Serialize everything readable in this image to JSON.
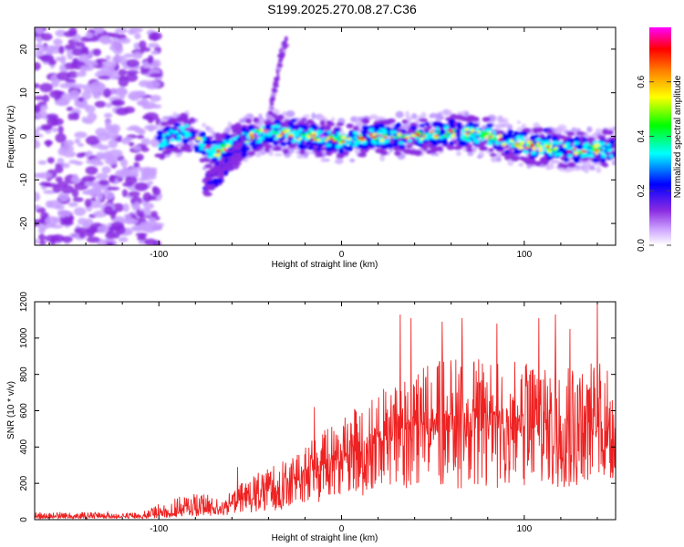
{
  "page_title": "S199.2025.270.08.27.C36",
  "chart_data": [
    {
      "type": "heatmap",
      "title": "S199.2025.270.08.27.C36",
      "xlabel": "Height of straight line (km)",
      "ylabel": "Frequency (Hz)",
      "xlim": [
        -168,
        150
      ],
      "ylim": [
        -25,
        25
      ],
      "x_ticks": [
        -100,
        0,
        100
      ],
      "y_ticks": [
        -20,
        -10,
        0,
        10,
        20
      ],
      "colorbar": {
        "label": "Normalized spectral amplitude",
        "range": [
          0.0,
          0.8
        ],
        "ticks": [
          0.0,
          0.2,
          0.4,
          0.6
        ],
        "tick_labels": [
          "0.0",
          "0.2",
          "0.4",
          "0.6"
        ],
        "colors": [
          "#ffffff",
          "#c8a0ff",
          "#8a2be2",
          "#0000ff",
          "#00ffff",
          "#00ff00",
          "#ffff00",
          "#ff8000",
          "#ff0000",
          "#ff00ff"
        ]
      },
      "features": {
        "noise_region_x": [
          -168,
          -100
        ],
        "ridge": [
          {
            "x": -100,
            "f": -1
          },
          {
            "x": -85,
            "f": 1
          },
          {
            "x": -70,
            "f": -4
          },
          {
            "x": -55,
            "f": -1
          },
          {
            "x": -40,
            "f": 1
          },
          {
            "x": -20,
            "f": 0
          },
          {
            "x": 0,
            "f": -1
          },
          {
            "x": 20,
            "f": 0
          },
          {
            "x": 40,
            "f": 0
          },
          {
            "x": 60,
            "f": 1
          },
          {
            "x": 80,
            "f": 0
          },
          {
            "x": 100,
            "f": -2
          },
          {
            "x": 120,
            "f": -3
          },
          {
            "x": 150,
            "f": -3
          }
        ],
        "branch": [
          {
            "x": -40,
            "f": 1
          },
          {
            "x": -38,
            "f": 8
          },
          {
            "x": -35,
            "f": 14
          },
          {
            "x": -33,
            "f": 19
          },
          {
            "x": -30,
            "f": 22
          }
        ]
      }
    },
    {
      "type": "line",
      "xlabel": "Height of straight line (km)",
      "ylabel": "SNR (10 * v/v)",
      "xlim": [
        -168,
        150
      ],
      "ylim": [
        0,
        1200
      ],
      "x_ticks": [
        -100,
        0,
        100
      ],
      "y_ticks": [
        0,
        200,
        400,
        600,
        800,
        1000,
        1200
      ],
      "series": [
        {
          "name": "SNR",
          "color": "#ee2222",
          "envelope": [
            {
              "x": -168,
              "base": 15,
              "peak": 45
            },
            {
              "x": -110,
              "base": 15,
              "peak": 40
            },
            {
              "x": -95,
              "base": 30,
              "peak": 110
            },
            {
              "x": -80,
              "base": 50,
              "peak": 150
            },
            {
              "x": -65,
              "base": 60,
              "peak": 120
            },
            {
              "x": -50,
              "base": 110,
              "peak": 240
            },
            {
              "x": -35,
              "base": 150,
              "peak": 320
            },
            {
              "x": -15,
              "base": 250,
              "peak": 450
            },
            {
              "x": 0,
              "base": 330,
              "peak": 580
            },
            {
              "x": 20,
              "base": 400,
              "peak": 700
            },
            {
              "x": 40,
              "base": 470,
              "peak": 850
            },
            {
              "x": 60,
              "base": 480,
              "peak": 900
            },
            {
              "x": 80,
              "base": 480,
              "peak": 880
            },
            {
              "x": 100,
              "base": 470,
              "peak": 870
            },
            {
              "x": 120,
              "base": 480,
              "peak": 900
            },
            {
              "x": 150,
              "base": 470,
              "peak": 850
            }
          ],
          "spikes": [
            {
              "x": -57,
              "value": 290
            },
            {
              "x": -15,
              "value": 620
            },
            {
              "x": 32,
              "value": 1130
            },
            {
              "x": 38,
              "value": 1110
            },
            {
              "x": 55,
              "value": 1090
            },
            {
              "x": 66,
              "value": 1110
            },
            {
              "x": 85,
              "value": 1080
            },
            {
              "x": 108,
              "value": 1110
            },
            {
              "x": 117,
              "value": 1130
            },
            {
              "x": 125,
              "value": 1050
            },
            {
              "x": 140,
              "value": 1200
            }
          ]
        }
      ]
    }
  ]
}
